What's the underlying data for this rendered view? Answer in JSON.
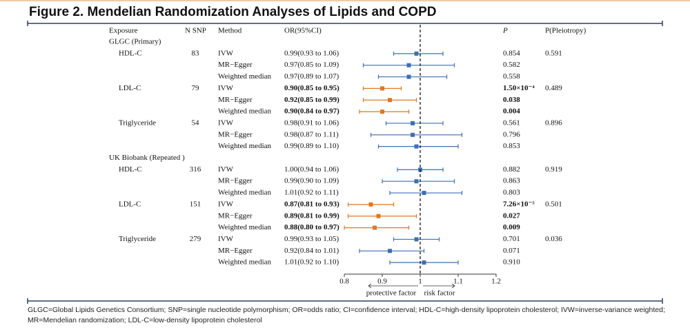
{
  "header": {
    "title": "Figure 2. Mendelian Randomization Analyses of Lipids and COPD"
  },
  "table": {
    "columns": [
      "Exposure",
      "N SNP",
      "Method",
      "OR(95%CI)",
      "P",
      "P(Pleiotropy)"
    ],
    "sections": [
      {
        "title": "GLGC (Primary)",
        "rows": [
          {
            "cells": [
              "HDL-C",
              "83",
              "IVW",
              "0.99(0.93 to 1.06)",
              "0.854",
              "0.591"
            ],
            "bold": false
          },
          {
            "cells": [
              null,
              null,
              "MR−Egger",
              "0.97(0.85 to 1.09)",
              "0.582",
              null
            ],
            "bold": false
          },
          {
            "cells": [
              null,
              null,
              "Weighted median",
              "0.97(0.89 to 1.07)",
              "0.558",
              null
            ],
            "bold": false
          },
          {
            "cells": [
              "LDL-C",
              "79",
              "IVW",
              "0.90(0.85 to 0.95)",
              "1.50×10⁻⁴",
              "0.489"
            ],
            "bold": true
          },
          {
            "cells": [
              null,
              null,
              "MR−Egger",
              "0.92(0.85 to 0.99)",
              "0.038",
              null
            ],
            "bold": true
          },
          {
            "cells": [
              null,
              null,
              "Weighted median",
              "0.90(0.84 to 0.97)",
              "0.004",
              null
            ],
            "bold": true
          },
          {
            "cells": [
              "Triglyceride",
              "54",
              "IVW",
              "0.98(0.91 to 1.06)",
              "0.561",
              "0.896"
            ],
            "bold": false
          },
          {
            "cells": [
              null,
              null,
              "MR−Egger",
              "0.98(0.87 to 1.11)",
              "0.796",
              null
            ],
            "bold": false
          },
          {
            "cells": [
              null,
              null,
              "Weighted median",
              "0.99(0.89 to 1.10)",
              "0.853",
              null
            ],
            "bold": false
          }
        ]
      },
      {
        "title": "UK Biobank (Repeated )",
        "rows": [
          {
            "cells": [
              "HDL-C",
              "316",
              "IVW",
              "1.00(0.94 to 1.06)",
              "0.882",
              "0.919"
            ],
            "bold": false
          },
          {
            "cells": [
              null,
              null,
              "MR−Egger",
              "0.99(0.90 to 1.09)",
              "0.863",
              null
            ],
            "bold": false
          },
          {
            "cells": [
              null,
              null,
              "Weighted median",
              "1.01(0.92 to 1.11)",
              "0.803",
              null
            ],
            "bold": false
          },
          {
            "cells": [
              "LDL-C",
              "151",
              "IVW",
              "0.87(0.81 to 0.93)",
              "7.26×10⁻⁵",
              "0.501"
            ],
            "bold": true
          },
          {
            "cells": [
              null,
              null,
              "MR−Egger",
              "0.89(0.81 to 0.99)",
              "0.027",
              null
            ],
            "bold": true
          },
          {
            "cells": [
              null,
              null,
              "Weighted median",
              "0.88(0.80 to 0.97)",
              "0.009",
              null
            ],
            "bold": true
          },
          {
            "cells": [
              "Triglyceride",
              "279",
              "IVW",
              "0.99(0.93 to 1.05)",
              "0.701",
              "0.036"
            ],
            "bold": false
          },
          {
            "cells": [
              null,
              null,
              "MR−Egger",
              "0.92(0.84 to 1.01)",
              "0.071",
              null
            ],
            "bold": false
          },
          {
            "cells": [
              null,
              null,
              "Weighted median",
              "1.01(0.92 to 1.10)",
              "0.910",
              null
            ],
            "bold": false
          }
        ]
      }
    ]
  },
  "chart_data": {
    "type": "forest",
    "xlim": [
      0.8,
      1.2
    ],
    "xticks": [
      0.8,
      0.9,
      1,
      1.1,
      1.2
    ],
    "reference": 1,
    "x_arrow_labels": [
      "protective factor",
      "risk factor"
    ],
    "estimates": [
      0.99,
      0.97,
      0.97,
      0.9,
      0.92,
      0.9,
      0.98,
      0.98,
      0.99,
      1.0,
      0.99,
      1.01,
      0.87,
      0.89,
      0.88,
      0.99,
      0.92,
      1.01
    ],
    "lower": [
      0.93,
      0.85,
      0.89,
      0.85,
      0.85,
      0.84,
      0.91,
      0.87,
      0.89,
      0.94,
      0.9,
      0.92,
      0.81,
      0.81,
      0.8,
      0.93,
      0.84,
      0.92
    ],
    "upper": [
      1.06,
      1.09,
      1.07,
      0.95,
      0.99,
      0.97,
      1.06,
      1.11,
      1.1,
      1.06,
      1.09,
      1.11,
      0.93,
      0.99,
      0.97,
      1.05,
      1.01,
      1.1
    ],
    "colors": [
      "#3d6fb5",
      "#3d6fb5",
      "#3d6fb5",
      "#e0771f",
      "#e0771f",
      "#e0771f",
      "#3d6fb5",
      "#3d6fb5",
      "#3d6fb5",
      "#3d6fb5",
      "#3d6fb5",
      "#3d6fb5",
      "#e0771f",
      "#e0771f",
      "#e0771f",
      "#3d6fb5",
      "#3d6fb5",
      "#3d6fb5"
    ]
  },
  "footer": {
    "note": "GLGC=Global Lipids Genetics Consortium; SNP=single nucleotide polymorphism; OR=odds ratio; CI=confidence interval; HDL-C=high-density lipoprotein cholesterol; IVW=inverse-variance weighted; MR=Mendelian randomization; LDL-C=low-density lipoprotein cholesterol"
  }
}
